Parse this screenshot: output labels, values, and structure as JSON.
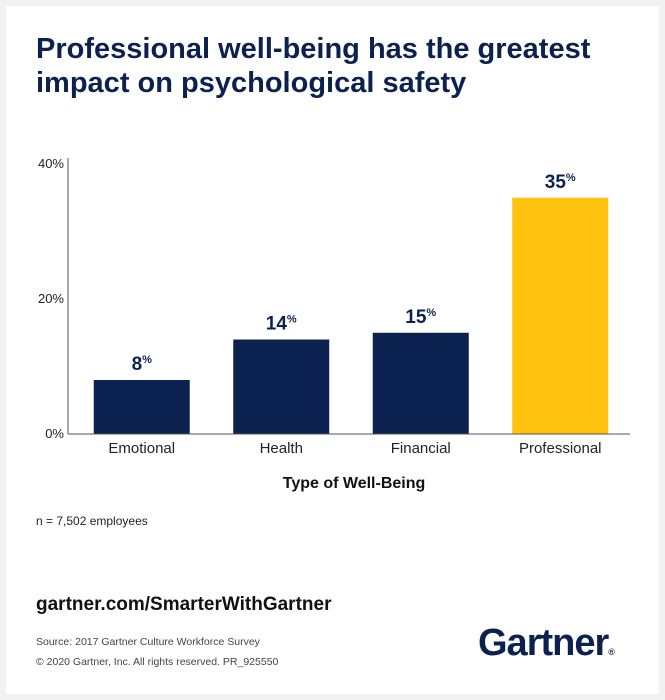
{
  "title": "Professional well-being has the greatest impact on psychological safety",
  "chart_data": {
    "type": "bar",
    "categories": [
      "Emotional",
      "Health",
      "Financial",
      "Professional"
    ],
    "values": [
      8,
      14,
      15,
      35
    ],
    "value_suffix": "%",
    "ylim": [
      0,
      40
    ],
    "yticks": [
      "0%",
      "20%",
      "40%"
    ],
    "ytick_values": [
      0,
      20,
      40
    ],
    "xlabel": "Type of Well-Being",
    "ylabel": "",
    "grid": false,
    "colors": [
      "#0b2250",
      "#0b2250",
      "#0b2250",
      "#ffc20e"
    ]
  },
  "note": "n = 7,502 employees",
  "url": "gartner.com/SmarterWithGartner",
  "source": "Source: 2017 Gartner Culture Workforce Survey",
  "copyright": "© 2020 Gartner, Inc. All rights reserved. PR_925550",
  "logo": {
    "text": "Gartner",
    "mark": "®"
  }
}
